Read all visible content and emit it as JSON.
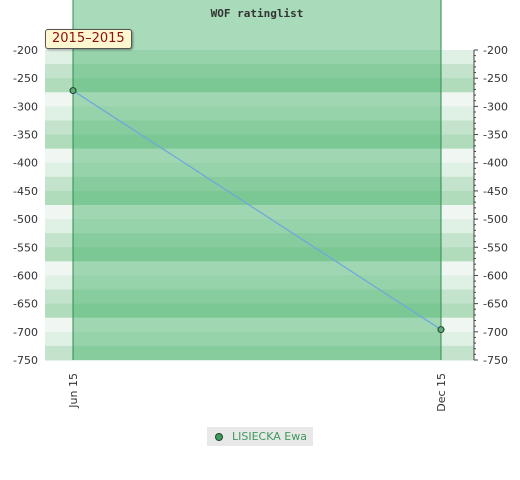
{
  "chart_data": {
    "type": "line",
    "title": "WOF ratinglist",
    "period_label": "2015–2015",
    "x_ticks": [
      "Jun 15",
      "Dec 15"
    ],
    "ylim": [
      -750,
      -200
    ],
    "y_ticks": [
      -200,
      -250,
      -300,
      -350,
      -400,
      -450,
      -500,
      -550,
      -600,
      -650,
      -700,
      -750
    ],
    "series": [
      {
        "name": "LISIECKA Ewa",
        "points": [
          {
            "x": "Jun 15",
            "y": -272
          },
          {
            "x": "Dec 15",
            "y": -696
          }
        ]
      }
    ],
    "legend_position": "bottom",
    "colors": {
      "line": "#6fa8dc",
      "area_fill": "#3fb063",
      "marker": "#5cae78",
      "badge_text": "#8a1010",
      "band_light": "#f0f7f2",
      "band_dark": "#7cc395"
    }
  }
}
